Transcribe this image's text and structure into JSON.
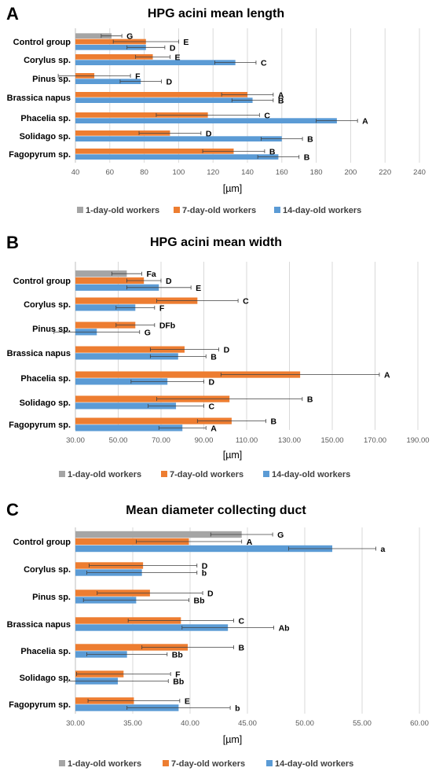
{
  "colors": {
    "series": [
      "#a5a5a5",
      "#ed7d31",
      "#5b9bd5"
    ]
  },
  "chart_data": [
    {
      "panel": "A",
      "type": "bar",
      "orientation": "horizontal",
      "title": "HPG acini mean length",
      "xlabel": "[µm]",
      "xlim": [
        40,
        240
      ],
      "xticks": [
        40,
        60,
        80,
        100,
        120,
        140,
        160,
        180,
        200,
        220,
        240
      ],
      "xtick_labels": [
        "40",
        "60",
        "80",
        "100",
        "120",
        "140",
        "160",
        "180",
        "200",
        "220",
        "240"
      ],
      "grid": true,
      "legend": "bottom",
      "categories": [
        "Control group",
        "Corylus sp.",
        "Pinus sp.",
        "Brassica napus",
        "Phacelia sp.",
        "Solidago sp.",
        "Fagopyrum sp."
      ],
      "series": [
        {
          "name": "1-day-old workers",
          "values": [
            61,
            null,
            null,
            null,
            null,
            null,
            null
          ],
          "errors": [
            6,
            null,
            null,
            null,
            null,
            null,
            null
          ],
          "labels": [
            "G",
            "",
            "",
            "",
            "",
            "",
            ""
          ]
        },
        {
          "name": "7-day-old workers",
          "values": [
            81,
            85,
            51,
            140,
            117,
            95,
            132
          ],
          "errors": [
            19,
            10,
            21,
            15,
            30,
            18,
            18
          ],
          "labels": [
            "E",
            "E",
            "F",
            "A",
            "C",
            "D",
            "B"
          ]
        },
        {
          "name": "14-day-old workers",
          "values": [
            81,
            133,
            78,
            143,
            192,
            160,
            158
          ],
          "errors": [
            11,
            12,
            12,
            12,
            12,
            12,
            12
          ],
          "labels": [
            "D",
            "C",
            "D",
            "B",
            "A",
            "B",
            "B"
          ]
        }
      ]
    },
    {
      "panel": "B",
      "type": "bar",
      "orientation": "horizontal",
      "title": "HPG acini mean width",
      "xlabel": "[µm]",
      "xlim": [
        30,
        190
      ],
      "xticks": [
        30,
        50,
        70,
        90,
        110,
        130,
        150,
        170,
        190
      ],
      "xtick_labels": [
        "30.00",
        "50.00",
        "70.00",
        "90.00",
        "110.00",
        "130.00",
        "150.00",
        "170.00",
        "190.00"
      ],
      "grid": true,
      "legend": "bottom",
      "categories": [
        "Control group",
        "Corylus sp.",
        "Pinus sp.",
        "Brassica napus",
        "Phacelia sp.",
        "Solidago sp.",
        "Fagopyrum sp."
      ],
      "series": [
        {
          "name": "1-day-old workers",
          "values": [
            54,
            null,
            null,
            null,
            null,
            null,
            null
          ],
          "errors": [
            7,
            null,
            null,
            null,
            null,
            null,
            null
          ],
          "labels": [
            "Fa",
            "",
            "",
            "",
            "",
            "",
            ""
          ]
        },
        {
          "name": "7-day-old workers",
          "values": [
            62,
            87,
            58,
            81,
            135,
            102,
            103
          ],
          "errors": [
            8,
            19,
            9,
            16,
            37,
            34,
            16
          ],
          "labels": [
            "D",
            "C",
            "DFb",
            "D",
            "A",
            "B",
            "B"
          ]
        },
        {
          "name": "14-day-old workers",
          "values": [
            69,
            58,
            40,
            78,
            73,
            77,
            80
          ],
          "errors": [
            15,
            9,
            20,
            13,
            17,
            13,
            11
          ],
          "labels": [
            "E",
            "F",
            "G",
            "B",
            "D",
            "C",
            "A"
          ]
        }
      ]
    },
    {
      "panel": "C",
      "type": "bar",
      "orientation": "horizontal",
      "title": "Mean diameter collecting duct",
      "xlabel": "[µm]",
      "xlim": [
        30,
        60
      ],
      "xticks": [
        30,
        35,
        40,
        45,
        50,
        55,
        60
      ],
      "xtick_labels": [
        "30.00",
        "35.00",
        "40.00",
        "45.00",
        "50.00",
        "55.00",
        "60.00"
      ],
      "grid": true,
      "legend": "bottom",
      "categories": [
        "Control group",
        "Corylus sp.",
        "Pinus sp.",
        "Brassica napus",
        "Phacelia sp.",
        "Solidago sp.",
        "Fagopyrum sp."
      ],
      "series": [
        {
          "name": "1-day-old workers",
          "values": [
            44.5,
            null,
            null,
            null,
            null,
            null,
            null
          ],
          "errors": [
            2.7,
            null,
            null,
            null,
            null,
            null,
            null
          ],
          "labels": [
            "G",
            "",
            "",
            "",
            "",
            "",
            ""
          ]
        },
        {
          "name": "7-day-old workers",
          "values": [
            39.9,
            35.9,
            36.5,
            39.2,
            39.8,
            34.2,
            35.1
          ],
          "errors": [
            4.6,
            4.7,
            4.6,
            4.6,
            4.0,
            4.1,
            4.0
          ],
          "labels": [
            "A",
            "D",
            "D",
            "C",
            "B",
            "F",
            "E"
          ]
        },
        {
          "name": "14-day-old workers",
          "values": [
            52.4,
            35.8,
            35.3,
            43.3,
            34.5,
            33.7,
            39.0
          ],
          "errors": [
            3.8,
            4.8,
            4.6,
            4.0,
            3.5,
            4.4,
            4.5
          ],
          "labels": [
            "a",
            "b",
            "Bb",
            "Ab",
            "Bb",
            "Bb",
            "b"
          ]
        }
      ]
    }
  ]
}
